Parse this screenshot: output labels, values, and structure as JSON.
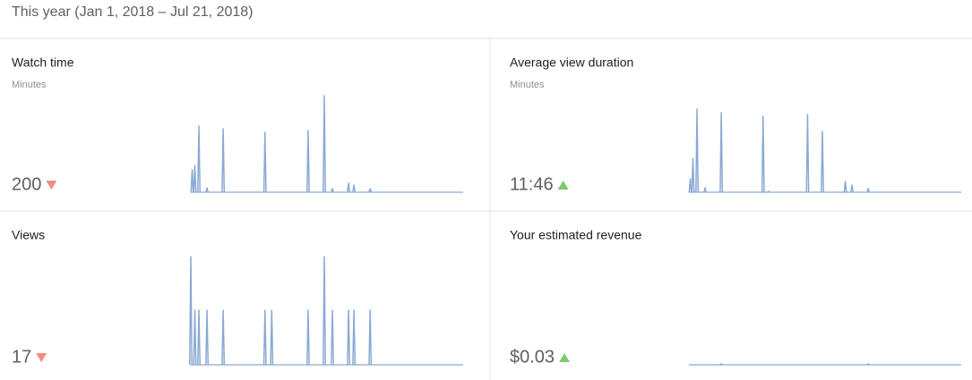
{
  "header": {
    "title": "This year (Jan 1, 2018 – Jul 21, 2018)"
  },
  "days": 202,
  "cards": [
    {
      "title": "Watch time",
      "subtitle": "Minutes",
      "value": "200",
      "trend": "down",
      "spikes": [
        {
          "day": 1,
          "value": 25
        },
        {
          "day": 3,
          "value": 30
        },
        {
          "day": 6,
          "value": 74
        },
        {
          "day": 12,
          "value": 5
        },
        {
          "day": 24,
          "value": 71
        },
        {
          "day": 55,
          "value": 67
        },
        {
          "day": 87,
          "value": 69
        },
        {
          "day": 99,
          "value": 108
        },
        {
          "day": 105,
          "value": 4
        },
        {
          "day": 117,
          "value": 10
        },
        {
          "day": 121,
          "value": 8
        },
        {
          "day": 133,
          "value": 4
        }
      ]
    },
    {
      "title": "Average view duration",
      "subtitle": "Minutes",
      "value": "11:46",
      "trend": "up",
      "spikes": [
        {
          "day": 1,
          "value": 15
        },
        {
          "day": 3,
          "value": 38
        },
        {
          "day": 6,
          "value": 93
        },
        {
          "day": 12,
          "value": 5
        },
        {
          "day": 24,
          "value": 89
        },
        {
          "day": 55,
          "value": 85
        },
        {
          "day": 59,
          "value": 1
        },
        {
          "day": 88,
          "value": 87
        },
        {
          "day": 99,
          "value": 68
        },
        {
          "day": 116,
          "value": 12
        },
        {
          "day": 121,
          "value": 8
        },
        {
          "day": 133,
          "value": 4
        }
      ]
    },
    {
      "title": "Views",
      "value": "17",
      "trend": "down",
      "spikes": [
        {
          "day": 0,
          "value": 121
        },
        {
          "day": 3,
          "value": 61
        },
        {
          "day": 6,
          "value": 61
        },
        {
          "day": 12,
          "value": 61
        },
        {
          "day": 24,
          "value": 61
        },
        {
          "day": 55,
          "value": 61
        },
        {
          "day": 60,
          "value": 61
        },
        {
          "day": 87,
          "value": 61
        },
        {
          "day": 99,
          "value": 121
        },
        {
          "day": 105,
          "value": 61
        },
        {
          "day": 117,
          "value": 61
        },
        {
          "day": 121,
          "value": 61
        },
        {
          "day": 133,
          "value": 61
        }
      ]
    },
    {
      "title": "Your estimated revenue",
      "value": "$0.03",
      "trend": "up",
      "spikes": [
        {
          "day": 24,
          "value": 1
        },
        {
          "day": 133,
          "value": 1
        }
      ]
    }
  ]
}
